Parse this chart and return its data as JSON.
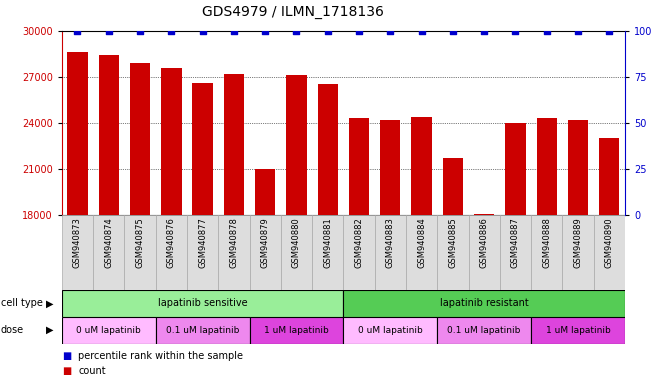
{
  "title": "GDS4979 / ILMN_1718136",
  "samples": [
    "GSM940873",
    "GSM940874",
    "GSM940875",
    "GSM940876",
    "GSM940877",
    "GSM940878",
    "GSM940879",
    "GSM940880",
    "GSM940881",
    "GSM940882",
    "GSM940883",
    "GSM940884",
    "GSM940885",
    "GSM940886",
    "GSM940887",
    "GSM940888",
    "GSM940889",
    "GSM940890"
  ],
  "bar_values": [
    28600,
    28400,
    27900,
    27600,
    26600,
    27200,
    21000,
    27100,
    26500,
    24300,
    24200,
    24400,
    21700,
    18100,
    24000,
    24300,
    24200,
    23000
  ],
  "percentile_values": [
    100,
    100,
    100,
    100,
    100,
    100,
    100,
    100,
    100,
    100,
    100,
    100,
    100,
    100,
    100,
    100,
    100,
    100
  ],
  "bar_color": "#cc0000",
  "percentile_color": "#0000cc",
  "ylim_left": [
    18000,
    30000
  ],
  "yticks_left": [
    18000,
    21000,
    24000,
    27000,
    30000
  ],
  "ylim_right": [
    0,
    100
  ],
  "yticks_right": [
    0,
    25,
    50,
    75,
    100
  ],
  "cell_type_groups": [
    {
      "label": "lapatinib sensitive",
      "start": 0,
      "end": 9,
      "color": "#99ee99"
    },
    {
      "label": "lapatinib resistant",
      "start": 9,
      "end": 18,
      "color": "#55cc55"
    }
  ],
  "dose_groups": [
    {
      "label": "0 uM lapatinib",
      "start": 0,
      "end": 3,
      "color": "#ffbbff"
    },
    {
      "label": "0.1 uM lapatinib",
      "start": 3,
      "end": 6,
      "color": "#ee88ee"
    },
    {
      "label": "1 uM lapatinib",
      "start": 6,
      "end": 9,
      "color": "#dd44dd"
    },
    {
      "label": "0 uM lapatinib",
      "start": 9,
      "end": 12,
      "color": "#ffbbff"
    },
    {
      "label": "0.1 uM lapatinib",
      "start": 12,
      "end": 15,
      "color": "#ee88ee"
    },
    {
      "label": "1 uM lapatinib",
      "start": 15,
      "end": 18,
      "color": "#dd44dd"
    }
  ],
  "background_color": "#ffffff",
  "title_fontsize": 10,
  "tick_fontsize": 7,
  "sample_fontsize": 6,
  "annotation_fontsize": 7,
  "sample_box_color": "#dddddd",
  "sample_box_edge": "#aaaaaa"
}
